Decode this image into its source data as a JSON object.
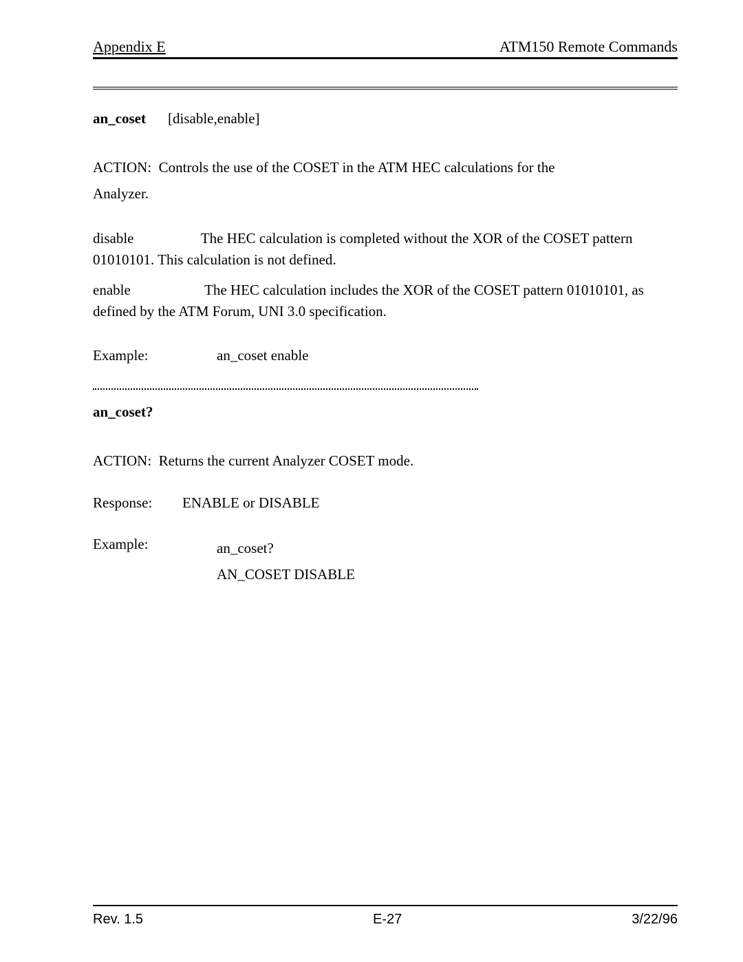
{
  "header": {
    "left": "Appendix E",
    "right": "ATM150 Remote Commands"
  },
  "cmd1": {
    "name": "an_coset",
    "args": "[disable,enable]",
    "action_label": "ACTION:",
    "action_text1": "Controls the use of the COSET in the ATM HEC calculations for the",
    "action_text2": "Analyzer.",
    "param1_name": "disable",
    "param1_text": "The HEC calculation is completed without the XOR of the COSET pattern 01010101. This calculation is not defined.",
    "param2_name": "enable",
    "param2_text": "The HEC calculation includes the XOR of the COSET pattern 01010101, as defined by the ATM Forum, UNI 3.0 specification.",
    "example_label": "Example:",
    "example_value": "an_coset enable"
  },
  "cmd2": {
    "name": "an_coset?",
    "action_label": "ACTION:",
    "action_text": "Returns the current Analyzer COSET mode.",
    "response_label": "Response:",
    "response_value": "ENABLE  or  DISABLE",
    "example_label": "Example:",
    "example_line1": "an_coset?",
    "example_line2": "AN_COSET DISABLE"
  },
  "footer": {
    "rev": "Rev. 1.5",
    "page": "E-27",
    "date": "3/22/96"
  }
}
